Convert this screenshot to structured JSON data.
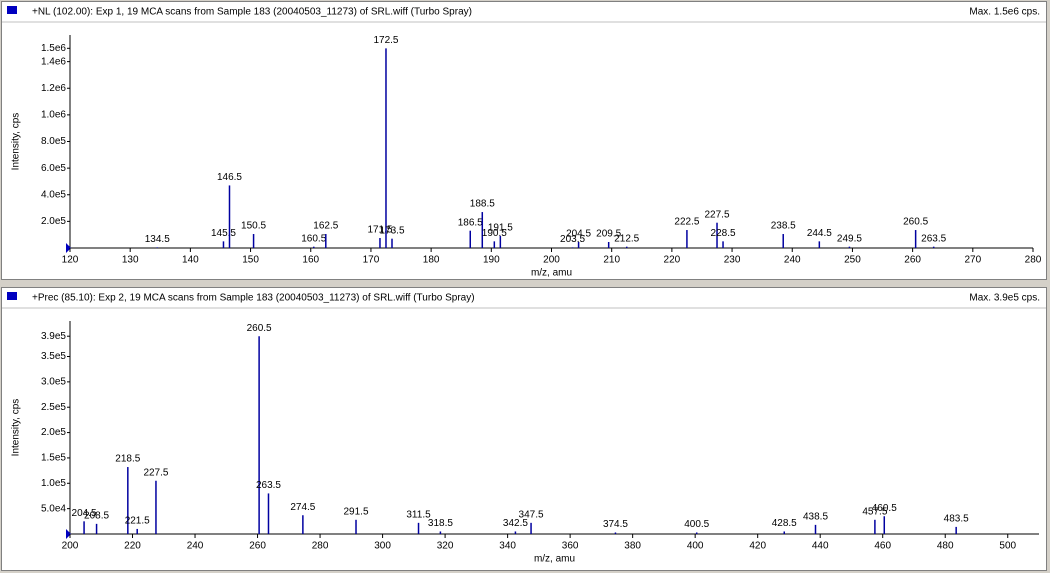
{
  "chart_data": [
    {
      "type": "stick",
      "title": "+NL (102.00): Exp 1, 19 MCA scans from Sample 183 (20040503_11273) of SRL.wiff (Turbo Spray)",
      "annotation": "Max. 1.5e6 cps.",
      "xlabel": "m/z, amu",
      "ylabel": "Intensity, cps",
      "color": "#0000a0",
      "x": [
        134.5,
        145.5,
        146.5,
        150.5,
        160.5,
        162.5,
        171.5,
        172.5,
        173.5,
        186.5,
        188.5,
        190.5,
        191.5,
        203.5,
        204.5,
        209.5,
        212.5,
        222.5,
        227.5,
        228.5,
        238.5,
        244.5,
        249.5,
        260.5,
        263.5
      ],
      "values": [
        5000,
        50000,
        470000,
        105000,
        10000,
        105000,
        75000,
        1500000,
        70000,
        130000,
        270000,
        50000,
        90000,
        5000,
        45000,
        45000,
        10000,
        135000,
        190000,
        50000,
        105000,
        50000,
        10000,
        135000,
        10000
      ],
      "xlim": [
        120,
        280
      ],
      "xticks": [
        120,
        130,
        140,
        150,
        160,
        170,
        180,
        190,
        200,
        210,
        220,
        230,
        240,
        250,
        260,
        270,
        280
      ],
      "ylim": [
        0,
        1600000
      ],
      "yticks": [
        {
          "value": 200000,
          "label": "2.0e5"
        },
        {
          "value": 400000,
          "label": "4.0e5"
        },
        {
          "value": 600000,
          "label": "6.0e5"
        },
        {
          "value": 800000,
          "label": "8.0e5"
        },
        {
          "value": 1000000,
          "label": "1.0e6"
        },
        {
          "value": 1200000,
          "label": "1.2e6"
        },
        {
          "value": 1400000,
          "label": "1.4e6"
        },
        {
          "value": 1500000,
          "label": "1.5e6"
        }
      ]
    },
    {
      "type": "stick",
      "title": "+Prec (85.10): Exp 2, 19 MCA scans from Sample 183 (20040503_11273) of SRL.wiff (Turbo Spray)",
      "annotation": "Max. 3.9e5 cps.",
      "xlabel": "m/z, amu",
      "ylabel": "Intensity, cps",
      "color": "#0000a0",
      "x": [
        204.5,
        208.5,
        218.5,
        221.5,
        227.5,
        260.5,
        263.5,
        274.5,
        291.5,
        311.5,
        318.5,
        342.5,
        347.5,
        374.5,
        400.5,
        428.5,
        438.5,
        457.5,
        460.5,
        483.5
      ],
      "values": [
        25000,
        20000,
        132000,
        10000,
        105000,
        390000,
        80000,
        37000,
        28000,
        22000,
        5000,
        5000,
        22000,
        3000,
        3000,
        5000,
        18000,
        28000,
        35000,
        14000
      ],
      "xlim": [
        200,
        510
      ],
      "xticks": [
        200,
        220,
        240,
        260,
        280,
        300,
        320,
        340,
        360,
        380,
        400,
        420,
        440,
        460,
        480,
        500
      ],
      "ylim": [
        0,
        420000
      ],
      "yticks": [
        {
          "value": 50000,
          "label": "5.0e4"
        },
        {
          "value": 100000,
          "label": "1.0e5"
        },
        {
          "value": 150000,
          "label": "1.5e5"
        },
        {
          "value": 200000,
          "label": "2.0e5"
        },
        {
          "value": 250000,
          "label": "2.5e5"
        },
        {
          "value": 300000,
          "label": "3.0e5"
        },
        {
          "value": 350000,
          "label": "3.5e5"
        },
        {
          "value": 390000,
          "label": "3.9e5"
        }
      ]
    }
  ]
}
